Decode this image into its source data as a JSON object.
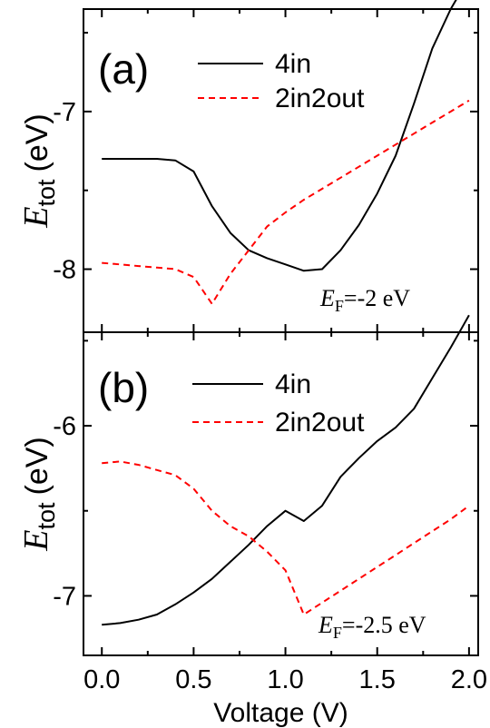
{
  "chart_data": [
    {
      "type": "line",
      "panel_label": "(a)",
      "ylabel": "E",
      "ylabel_sub": "tot",
      "ylabel_unit": "(eV)",
      "xlabel": "Voltage (V)",
      "xlim": [
        -0.1,
        2.05
      ],
      "ylim": [
        -8.4,
        -6.35
      ],
      "xticks": [
        0.0,
        0.5,
        1.0,
        1.5,
        2.0
      ],
      "yticks": [
        -8,
        -7
      ],
      "ytick_labels": [
        "-8",
        "-7"
      ],
      "annotation": {
        "main": "E",
        "sub": "F",
        "rest": "=-2 eV"
      },
      "series": [
        {
          "name": "4in",
          "color": "#000000",
          "style": "solid",
          "x": [
            0.0,
            0.1,
            0.2,
            0.3,
            0.4,
            0.5,
            0.6,
            0.7,
            0.8,
            0.9,
            1.0,
            1.1,
            1.2,
            1.3,
            1.4,
            1.5,
            1.6,
            1.7,
            1.8,
            1.9,
            2.0
          ],
          "y": [
            -7.3,
            -7.3,
            -7.3,
            -7.3,
            -7.31,
            -7.38,
            -7.6,
            -7.77,
            -7.88,
            -7.93,
            -7.97,
            -8.01,
            -8.0,
            -7.88,
            -7.72,
            -7.52,
            -7.28,
            -6.95,
            -6.6,
            -6.35,
            -6.15
          ]
        },
        {
          "name": "2in2out",
          "color": "#ff0000",
          "style": "dashed",
          "x": [
            0.0,
            0.1,
            0.2,
            0.3,
            0.4,
            0.5,
            0.6,
            0.7,
            0.8,
            0.9,
            1.0,
            1.1,
            1.2,
            1.3,
            1.4,
            1.5,
            1.6,
            1.7,
            1.8,
            1.9,
            2.0
          ],
          "y": [
            -7.96,
            -7.97,
            -7.98,
            -7.99,
            -8.0,
            -8.05,
            -8.22,
            -8.03,
            -7.88,
            -7.73,
            -7.64,
            -7.56,
            -7.49,
            -7.42,
            -7.35,
            -7.28,
            -7.21,
            -7.14,
            -7.07,
            -7.0,
            -6.93
          ]
        }
      ]
    },
    {
      "type": "line",
      "panel_label": "(b)",
      "ylabel": "E",
      "ylabel_sub": "tot",
      "ylabel_unit": "(eV)",
      "xlabel": "Voltage (V)",
      "xlim": [
        -0.1,
        2.05
      ],
      "ylim": [
        -7.35,
        -5.45
      ],
      "xticks": [
        0.0,
        0.5,
        1.0,
        1.5,
        2.0
      ],
      "xtick_labels": [
        "0.0",
        "0.5",
        "1.0",
        "1.5",
        "2.0"
      ],
      "yticks": [
        -7,
        -6
      ],
      "ytick_labels": [
        "-7",
        "-6"
      ],
      "annotation": {
        "main": "E",
        "sub": "F",
        "rest": "=-2.5 eV"
      },
      "series": [
        {
          "name": "4in",
          "color": "#000000",
          "style": "solid",
          "x": [
            0.0,
            0.1,
            0.2,
            0.3,
            0.4,
            0.5,
            0.6,
            0.7,
            0.8,
            0.9,
            1.0,
            1.1,
            1.2,
            1.3,
            1.4,
            1.5,
            1.6,
            1.7,
            1.8,
            1.9,
            2.0
          ],
          "y": [
            -7.17,
            -7.16,
            -7.14,
            -7.11,
            -7.05,
            -6.98,
            -6.9,
            -6.8,
            -6.7,
            -6.59,
            -6.5,
            -6.56,
            -6.47,
            -6.3,
            -6.19,
            -6.09,
            -6.01,
            -5.9,
            -5.72,
            -5.54,
            -5.35
          ]
        },
        {
          "name": "2in2out",
          "color": "#ff0000",
          "style": "dashed",
          "x": [
            0.0,
            0.1,
            0.2,
            0.3,
            0.4,
            0.5,
            0.6,
            0.7,
            0.8,
            0.9,
            1.0,
            1.1,
            1.2,
            1.3,
            1.4,
            1.5,
            1.6,
            1.7,
            1.8,
            1.9,
            2.0
          ],
          "y": [
            -6.22,
            -6.21,
            -6.23,
            -6.26,
            -6.29,
            -6.37,
            -6.5,
            -6.59,
            -6.65,
            -6.74,
            -6.85,
            -7.11,
            -7.04,
            -6.97,
            -6.9,
            -6.83,
            -6.76,
            -6.69,
            -6.62,
            -6.55,
            -6.47
          ]
        }
      ]
    }
  ]
}
